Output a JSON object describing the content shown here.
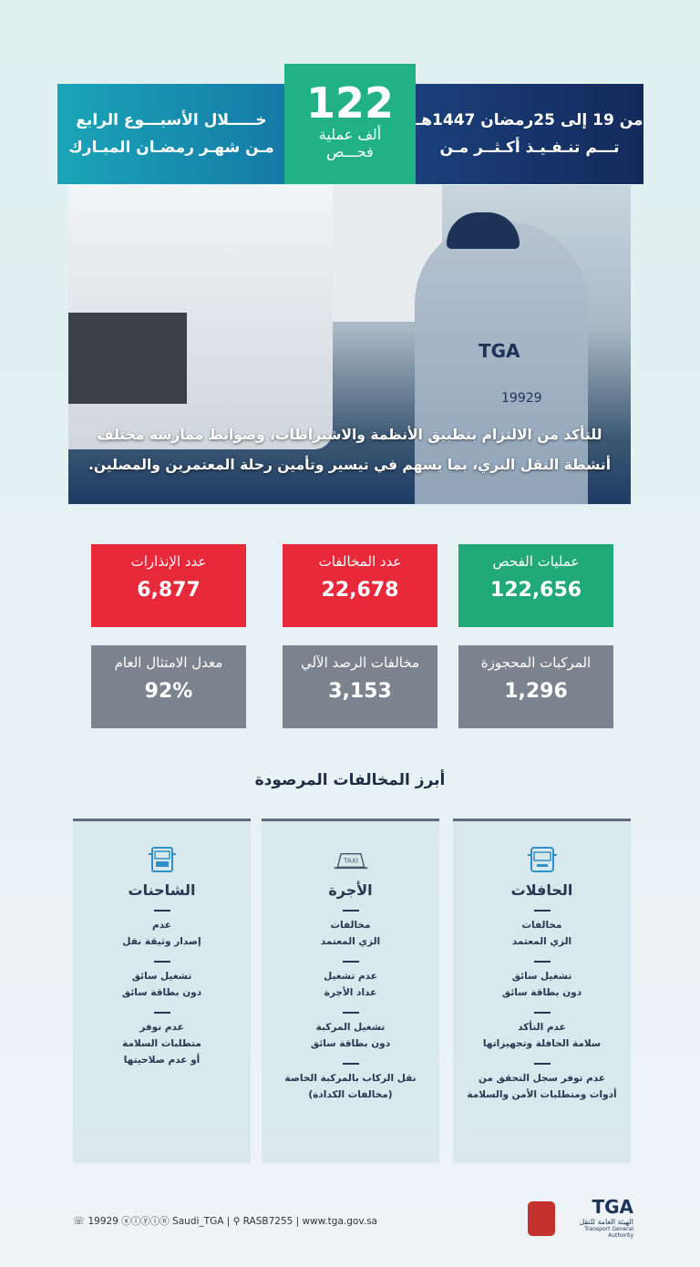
{
  "header": {
    "left_line1": "خـــــلال الأسبـــوع الرابع",
    "left_line2": "مـن شهـر رمضـان المبـارك",
    "center_number": "122",
    "center_sub1": "ألف عملية",
    "center_sub2": "فحـــص",
    "right_line1": "من 19 إلى 25رمضان 1447هـ",
    "right_line2": "تـــم تنـفـيـذ أكـثــر مـن"
  },
  "photo": {
    "vest_logo": "TGA",
    "vest_number": "19929",
    "caption_line1": "للتأكد من الالتزام بتطبيق الأنظمة والاشتراطات، وضوابط ممارسة مختلف",
    "caption_line2": "أنشطة النقل البري، بما يسهم في تيسير وتأمين رحلة المعتمرين والمصلين."
  },
  "stats": [
    {
      "label": "عمليات الفحص",
      "value": "122,656",
      "color": "#22a97a"
    },
    {
      "label": "عدد المخالفات",
      "value": "22,678",
      "color": "#e8293a"
    },
    {
      "label": "عدد الإنذارات",
      "value": "6,877",
      "color": "#e8293a"
    },
    {
      "label": "المركبات المحجوزة",
      "value": "1,296",
      "color": "#7b838f"
    },
    {
      "label": "مخالفات الرصد الآلي",
      "value": "3,153",
      "color": "#7b838f"
    },
    {
      "label": "معدل الامتثال العام",
      "value": "92%",
      "color": "#7b838f"
    }
  ],
  "section_title": "أبرز المخالفات المرصودة",
  "columns": [
    {
      "icon": "bus-icon",
      "title": "الحافلات",
      "items": [
        [
          "مخالفات",
          "الزي المعتمد"
        ],
        [
          "تشغيل سائق",
          "دون بطاقة سائق"
        ],
        [
          "عدم التأكد",
          "سلامة الحافلة وتجهيزاتها"
        ],
        [
          "عدم توفر سجل التحقق من",
          "أدوات ومتطلبات الأمن والسلامة"
        ]
      ]
    },
    {
      "icon": "taxi-icon",
      "icon_text": "TAXI",
      "title": "الأجرة",
      "items": [
        [
          "مخالفات",
          "الزي المعتمد"
        ],
        [
          "عدم تشغيل",
          "عداد الأجرة"
        ],
        [
          "تشغيل المركبة",
          "دون بطاقة سائق"
        ],
        [
          "نقل الركاب بالمركبة الخاصة",
          "(مخالفات الكدادة)"
        ]
      ]
    },
    {
      "icon": "truck-icon",
      "title": "الشاحنات",
      "items": [
        [
          "عدم",
          "إصدار وثيقة نقل"
        ],
        [
          "تشغيل سائق",
          "دون بطاقة سائق"
        ],
        [
          "عدم توفر",
          "متطلبات السلامة",
          "أو عدم صلاحيتها"
        ]
      ]
    }
  ],
  "footer": {
    "phone": "19929",
    "handle": "Saudi_TGA",
    "address": "RASB7255",
    "website": "www.tga.gov.sa",
    "logo_text": "TGA",
    "logo_sub": "الهيئة العامة للنقل",
    "logo_en": "Transport General Authority"
  }
}
